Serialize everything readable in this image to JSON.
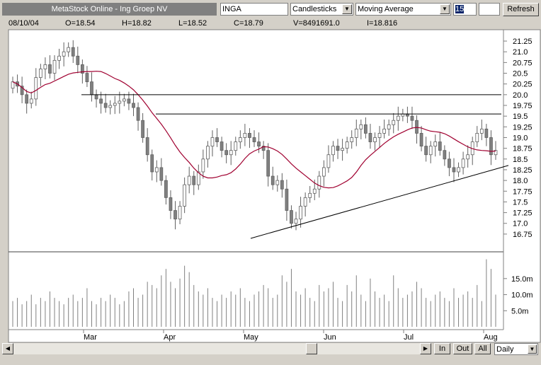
{
  "toolbar": {
    "title": "MetaStock Online - Ing Groep NV",
    "symbol": "INGA",
    "chart_style": "Candlesticks",
    "indicator": "Moving Average",
    "period": "15",
    "refresh_label": "Refresh"
  },
  "quote": {
    "date": "08/10/04",
    "open": "O=18.54",
    "high": "H=18.82",
    "low": "L=18.52",
    "close": "C=18.79",
    "volume": "V=8491691.0",
    "indicator": "I=18.816"
  },
  "bottom_bar": {
    "zoom_in": "In",
    "zoom_out": "Out",
    "all": "All",
    "interval": "Daily"
  },
  "chart_data": {
    "type": "candlestick",
    "x_ticks": [
      "Mar",
      "Apr",
      "May",
      "Jun",
      "Jul",
      "Aug"
    ],
    "y_ticks": [
      "21.25",
      "21.0",
      "20.75",
      "20.5",
      "20.25",
      "20.0",
      "19.75",
      "19.5",
      "19.25",
      "19.0",
      "18.75",
      "18.5",
      "18.25",
      "18.0",
      "17.75",
      "17.5",
      "17.25",
      "17.0",
      "16.75"
    ],
    "ylim": [
      16.6,
      21.35
    ],
    "volume_ticks": [
      "15.0m",
      "10.0m",
      "5.0m"
    ],
    "volume_ylim": [
      0,
      22
    ],
    "up_color": "#ffffff",
    "down_color": "#808080",
    "ma_color": "#a00030",
    "ma_period": 15,
    "close": [
      20.3,
      20.2,
      20.0,
      19.8,
      19.9,
      20.4,
      20.6,
      20.7,
      20.5,
      20.8,
      20.9,
      21.0,
      21.1,
      20.9,
      20.7,
      20.5,
      20.3,
      20.0,
      19.9,
      19.8,
      19.7,
      19.75,
      19.8,
      19.85,
      19.9,
      19.8,
      19.7,
      19.4,
      19.0,
      18.6,
      18.2,
      18.3,
      18.0,
      17.6,
      17.3,
      17.1,
      17.4,
      17.9,
      18.1,
      17.9,
      18.2,
      18.5,
      18.8,
      19.0,
      18.9,
      18.7,
      18.6,
      18.7,
      18.9,
      19.0,
      19.1,
      19.0,
      18.9,
      18.8,
      18.7,
      18.1,
      17.9,
      18.0,
      17.8,
      17.3,
      17.0,
      17.1,
      17.4,
      17.6,
      17.7,
      17.8,
      18.1,
      18.3,
      18.6,
      18.8,
      18.7,
      18.75,
      18.9,
      19.0,
      19.2,
      19.3,
      19.1,
      18.9,
      19.0,
      19.1,
      19.2,
      19.3,
      19.4,
      19.5,
      19.55,
      19.5,
      19.4,
      19.1,
      18.8,
      18.6,
      18.8,
      18.9,
      18.7,
      18.5,
      18.3,
      18.2,
      18.3,
      18.5,
      18.6,
      18.9,
      19.1,
      19.2,
      19.0,
      18.6,
      18.7
    ],
    "volume": [
      8,
      9,
      7,
      8,
      10,
      7,
      9,
      8,
      11,
      9,
      8,
      7,
      9,
      10,
      8,
      9,
      12,
      8,
      7,
      9,
      8,
      10,
      9,
      7,
      8,
      11,
      12,
      9,
      10,
      14,
      13,
      12,
      16,
      18,
      14,
      12,
      15,
      19,
      17,
      13,
      11,
      10,
      12,
      9,
      8,
      10,
      9,
      11,
      10,
      12,
      9,
      8,
      10,
      11,
      13,
      12,
      9,
      10,
      16,
      14,
      18,
      11,
      10,
      12,
      9,
      8,
      13,
      11,
      12,
      14,
      9,
      8,
      13,
      11,
      16,
      10,
      8,
      15,
      11,
      9,
      10,
      8,
      16,
      12,
      9,
      10,
      11,
      14,
      12,
      9,
      8,
      10,
      11,
      9,
      8,
      12,
      9,
      10,
      11,
      9,
      13,
      8,
      21,
      18,
      10
    ],
    "support_line": {
      "from": [
        "May",
        16.65
      ],
      "to": [
        "Aug",
        18.35
      ]
    },
    "resistance_1": 20.0,
    "resistance_2": 19.55
  }
}
